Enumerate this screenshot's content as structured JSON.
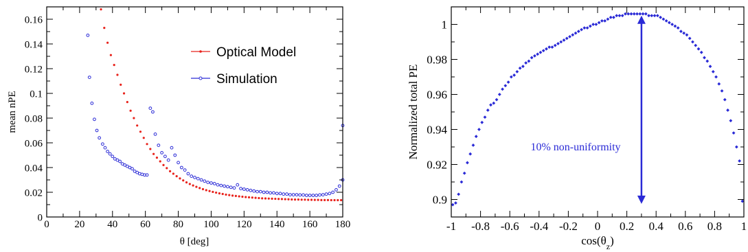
{
  "chart_data": [
    {
      "type": "scatter",
      "xlabel": "θ [deg]",
      "ylabel": "mean nPE",
      "xlim": [
        0,
        180
      ],
      "ylim": [
        0,
        0.17
      ],
      "x_ticks": [
        0,
        20,
        40,
        60,
        80,
        100,
        120,
        140,
        160,
        180
      ],
      "x_tick_labels": [
        "0",
        "20",
        "40",
        "60",
        "80",
        "100",
        "120",
        "140",
        "160",
        "180"
      ],
      "y_ticks": [
        0,
        0.02,
        0.04,
        0.06,
        0.08,
        0.1,
        0.12,
        0.14,
        0.16
      ],
      "y_tick_labels": [
        "0",
        "0.02",
        "0.04",
        "0.06",
        "0.08",
        "0.1",
        "0.12",
        "0.14",
        "0.16"
      ],
      "grid": false,
      "legend_position": "top-right",
      "series": [
        {
          "name": "Optical Model",
          "color": "#e8231c",
          "marker": "filled-dot",
          "x": [
            33,
            35,
            37,
            39,
            41,
            43,
            45,
            47,
            49,
            51,
            53,
            55,
            57,
            59,
            61,
            63,
            65,
            67,
            69,
            71,
            73,
            75,
            77,
            79,
            81,
            83,
            85,
            87,
            89,
            91,
            93,
            95,
            97,
            99,
            101,
            103,
            105,
            107,
            109,
            111,
            113,
            115,
            117,
            119,
            121,
            123,
            125,
            127,
            129,
            131,
            133,
            135,
            137,
            139,
            141,
            143,
            145,
            147,
            149,
            151,
            153,
            155,
            157,
            159,
            161,
            163,
            165,
            167,
            169,
            171,
            173,
            175,
            177,
            179
          ],
          "y": [
            0.168,
            0.153,
            0.141,
            0.131,
            0.123,
            0.115,
            0.107,
            0.1,
            0.093,
            0.086,
            0.08,
            0.074,
            0.069,
            0.064,
            0.059,
            0.055,
            0.051,
            0.048,
            0.045,
            0.042,
            0.0395,
            0.037,
            0.035,
            0.033,
            0.0312,
            0.0296,
            0.028,
            0.0267,
            0.0255,
            0.0244,
            0.0234,
            0.0225,
            0.0217,
            0.021,
            0.0203,
            0.0197,
            0.0191,
            0.0186,
            0.0181,
            0.0177,
            0.0173,
            0.017,
            0.0167,
            0.0164,
            0.0161,
            0.0159,
            0.0157,
            0.0155,
            0.0153,
            0.0151,
            0.015,
            0.0149,
            0.0148,
            0.0147,
            0.0146,
            0.0145,
            0.0144,
            0.0143,
            0.0142,
            0.0141,
            0.0141,
            0.014,
            0.014,
            0.0139,
            0.0139,
            0.0138,
            0.0138,
            0.0137,
            0.0137,
            0.0137,
            0.0136,
            0.0136,
            0.0136,
            0.0136
          ]
        },
        {
          "name": "Simulation",
          "color": "#2a2ad6",
          "marker": "open-circle",
          "x": [
            25,
            26,
            27.5,
            29,
            30.5,
            32,
            34,
            35.5,
            37,
            38.5,
            40,
            41.5,
            43,
            44.5,
            46,
            47.5,
            49,
            50.5,
            52,
            53.5,
            55,
            56.5,
            58,
            59.5,
            61,
            63,
            64.5,
            66,
            68,
            70,
            72,
            74,
            76,
            78,
            80,
            82,
            84,
            86,
            88,
            90,
            92,
            94,
            96,
            98,
            100,
            102,
            104,
            106,
            108,
            110,
            112,
            114,
            116,
            118,
            120,
            122,
            124,
            126,
            128,
            130,
            132,
            134,
            136,
            138,
            140,
            142,
            144,
            146,
            148,
            150,
            152,
            154,
            156,
            158,
            160,
            162,
            164,
            166,
            168,
            170,
            172,
            174,
            176,
            178,
            180
          ],
          "y": [
            0.147,
            0.113,
            0.092,
            0.079,
            0.07,
            0.064,
            0.059,
            0.056,
            0.053,
            0.051,
            0.049,
            0.047,
            0.046,
            0.045,
            0.043,
            0.042,
            0.041,
            0.04,
            0.039,
            0.037,
            0.036,
            0.035,
            0.0345,
            0.034,
            0.034,
            0.088,
            0.085,
            0.067,
            0.058,
            0.052,
            0.049,
            0.046,
            0.056,
            0.05,
            0.044,
            0.04,
            0.038,
            0.035,
            0.033,
            0.032,
            0.031,
            0.03,
            0.029,
            0.028,
            0.0275,
            0.027,
            0.026,
            0.0255,
            0.025,
            0.0245,
            0.024,
            0.0235,
            0.026,
            0.023,
            0.0225,
            0.022,
            0.0215,
            0.021,
            0.0205,
            0.0205,
            0.02,
            0.02,
            0.0195,
            0.0195,
            0.019,
            0.019,
            0.0185,
            0.0185,
            0.018,
            0.018,
            0.018,
            0.0178,
            0.0178,
            0.0175,
            0.0175,
            0.0175,
            0.0175,
            0.0178,
            0.018,
            0.0185,
            0.019,
            0.02,
            0.022,
            0.025,
            0.03
          ]
        },
        {
          "name": "",
          "color": "#2a2ad6",
          "marker": "open-circle",
          "x": [
            180
          ],
          "y": [
            0.074
          ]
        }
      ]
    },
    {
      "type": "scatter",
      "xlabel": "cos(θ",
      "xlabel_sub": "z",
      "xlabel_end": ")",
      "ylabel": "Normalized total PE",
      "xlim": [
        -1,
        1
      ],
      "ylim": [
        0.89,
        1.01
      ],
      "x_ticks": [
        -1,
        -0.8,
        -0.6,
        -0.4,
        -0.2,
        0,
        0.2,
        0.4,
        0.6,
        0.8,
        1
      ],
      "x_tick_labels": [
        "-1",
        "-0.8",
        "-0.6",
        "-0.4",
        "-0.2",
        "0",
        "0.2",
        "0.4",
        "0.6",
        "0.8",
        "1"
      ],
      "y_ticks": [
        0.9,
        0.92,
        0.94,
        0.96,
        0.98,
        1
      ],
      "y_tick_labels": [
        "0.9",
        "0.92",
        "0.94",
        "0.96",
        "0.98",
        "1"
      ],
      "grid": false,
      "annotation": "10% non-uniformity",
      "arrow": {
        "x": 0.3,
        "y_from": 0.8975,
        "y_to": 1.005
      },
      "series": [
        {
          "color": "#2a2ad6",
          "marker": "diamond",
          "x": [
            -0.99,
            -0.97,
            -0.95,
            -0.93,
            -0.91,
            -0.89,
            -0.87,
            -0.85,
            -0.83,
            -0.81,
            -0.79,
            -0.77,
            -0.75,
            -0.73,
            -0.71,
            -0.69,
            -0.67,
            -0.65,
            -0.63,
            -0.61,
            -0.59,
            -0.57,
            -0.55,
            -0.53,
            -0.51,
            -0.49,
            -0.47,
            -0.45,
            -0.43,
            -0.41,
            -0.39,
            -0.37,
            -0.35,
            -0.33,
            -0.31,
            -0.29,
            -0.27,
            -0.25,
            -0.23,
            -0.21,
            -0.19,
            -0.17,
            -0.15,
            -0.13,
            -0.11,
            -0.09,
            -0.07,
            -0.05,
            -0.03,
            -0.01,
            0.01,
            0.03,
            0.05,
            0.07,
            0.09,
            0.11,
            0.13,
            0.15,
            0.17,
            0.19,
            0.21,
            0.23,
            0.25,
            0.27,
            0.29,
            0.31,
            0.33,
            0.35,
            0.37,
            0.39,
            0.41,
            0.43,
            0.45,
            0.47,
            0.49,
            0.51,
            0.53,
            0.55,
            0.57,
            0.59,
            0.61,
            0.63,
            0.65,
            0.67,
            0.69,
            0.71,
            0.73,
            0.75,
            0.77,
            0.79,
            0.81,
            0.83,
            0.85,
            0.87,
            0.89,
            0.91,
            0.93,
            0.95,
            0.97,
            0.99
          ],
          "y": [
            0.897,
            0.898,
            0.903,
            0.91,
            0.915,
            0.921,
            0.926,
            0.931,
            0.936,
            0.94,
            0.944,
            0.947,
            0.951,
            0.954,
            0.955,
            0.957,
            0.96,
            0.963,
            0.965,
            0.967,
            0.97,
            0.971,
            0.973,
            0.975,
            0.976,
            0.978,
            0.979,
            0.981,
            0.982,
            0.983,
            0.984,
            0.985,
            0.986,
            0.987,
            0.987,
            0.988,
            0.989,
            0.99,
            0.991,
            0.992,
            0.993,
            0.994,
            0.995,
            0.996,
            0.997,
            0.998,
            0.998,
            0.999,
            1.0,
            1.0,
            1.001,
            1.002,
            1.002,
            1.003,
            1.004,
            1.004,
            1.005,
            1.005,
            1.005,
            1.006,
            1.006,
            1.006,
            1.006,
            1.006,
            1.006,
            1.006,
            1.006,
            1.005,
            1.005,
            1.005,
            1.005,
            1.004,
            1.003,
            1.002,
            1.001,
            1.0,
            0.999,
            0.998,
            0.996,
            0.995,
            0.994,
            0.992,
            0.99,
            0.988,
            0.986,
            0.984,
            0.981,
            0.979,
            0.976,
            0.973,
            0.97,
            0.966,
            0.962,
            0.957,
            0.951,
            0.945,
            0.938,
            0.93,
            0.922,
            0.899
          ]
        }
      ]
    }
  ]
}
